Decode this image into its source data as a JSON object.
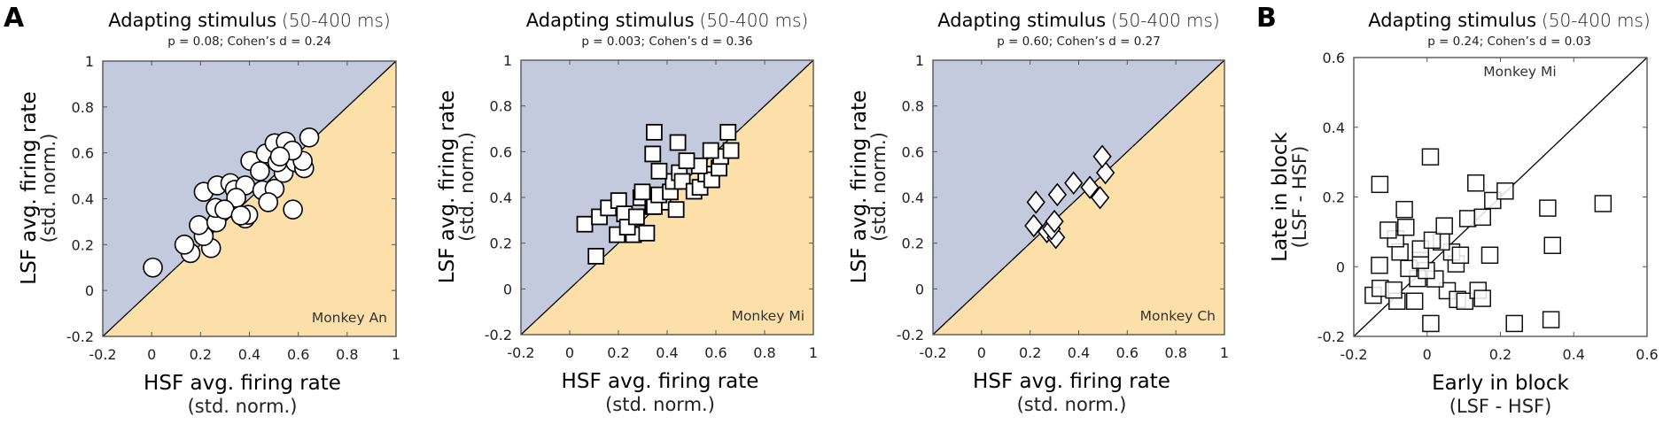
{
  "figure": {
    "panel_labels": [
      "A",
      "B"
    ],
    "colors": {
      "lsf_region": "#c3cadd",
      "hsf_region": "#fde0a9",
      "marker_fill": "#ffffff",
      "marker_edge": "#000000",
      "axis": "#555555"
    }
  },
  "chart_data": [
    {
      "type": "scatter",
      "panel": "A",
      "title": "Adapting stimulus",
      "title_suffix": "(50-400 ms)",
      "subtitle": "p = 0.08; Cohen’s d = 0.24",
      "annotation": "Monkey An",
      "annotation_position": "bottom-right",
      "marker": "circle",
      "xlabel": "HSF avg. firing rate",
      "xlabel_sub": "(std. norm.)",
      "ylabel": "LSF avg. firing rate",
      "ylabel_sub": "(std. norm.)",
      "xlim": [
        -0.2,
        1
      ],
      "ylim": [
        -0.2,
        1
      ],
      "xticks": [
        "-0.2",
        "0",
        "0.2",
        "0.4",
        "0.6",
        "0.8",
        "1"
      ],
      "yticks": [
        "-0.2",
        "0",
        "0.2",
        "0.4",
        "0.6",
        "0.8",
        "1"
      ],
      "xtick_values": [
        -0.2,
        0,
        0.2,
        0.4,
        0.6,
        0.8,
        1
      ],
      "ytick_values": [
        -0.2,
        0,
        0.2,
        0.4,
        0.6,
        0.8,
        1
      ],
      "diagonal": true,
      "shaded_halves": true,
      "grid": false,
      "points": [
        [
          0.005,
          0.1
        ],
        [
          0.645,
          0.667
        ],
        [
          0.578,
          0.353
        ],
        [
          0.404,
          0.565
        ],
        [
          0.159,
          0.163
        ],
        [
          0.243,
          0.185
        ],
        [
          0.134,
          0.2
        ],
        [
          0.213,
          0.237
        ],
        [
          0.193,
          0.285
        ],
        [
          0.265,
          0.297
        ],
        [
          0.383,
          0.314
        ],
        [
          0.395,
          0.33
        ],
        [
          0.328,
          0.36
        ],
        [
          0.262,
          0.36
        ],
        [
          0.213,
          0.43
        ],
        [
          0.268,
          0.458
        ],
        [
          0.322,
          0.468
        ],
        [
          0.34,
          0.439
        ],
        [
          0.383,
          0.458
        ],
        [
          0.453,
          0.437
        ],
        [
          0.503,
          0.443
        ],
        [
          0.477,
          0.385
        ],
        [
          0.443,
          0.52
        ],
        [
          0.467,
          0.597
        ],
        [
          0.503,
          0.642
        ],
        [
          0.549,
          0.649
        ],
        [
          0.54,
          0.513
        ],
        [
          0.588,
          0.559
        ],
        [
          0.624,
          0.533
        ],
        [
          0.515,
          0.559
        ],
        [
          0.346,
          0.404
        ],
        [
          0.298,
          0.353
        ],
        [
          0.365,
          0.327
        ],
        [
          0.618,
          0.565
        ],
        [
          0.576,
          0.61
        ],
        [
          0.525,
          0.584
        ]
      ]
    },
    {
      "type": "scatter",
      "panel": "A",
      "title": "Adapting stimulus",
      "title_suffix": "(50-400 ms)",
      "subtitle": "p = 0.003; Cohen’s d = 0.36",
      "annotation": "Monkey Mi",
      "annotation_position": "bottom-right",
      "marker": "square",
      "xlabel": "HSF avg. firing rate",
      "xlabel_sub": "(std. norm.)",
      "ylabel": "LSF avg. firing rate",
      "ylabel_sub": "(std. norm.)",
      "xlim": [
        -0.2,
        1
      ],
      "ylim": [
        -0.2,
        1
      ],
      "xticks": [
        "-0.2",
        "0",
        "0.2",
        "0.4",
        "0.6",
        "0.8",
        "1"
      ],
      "yticks": [
        "-0.2",
        "0",
        "0.2",
        "0.4",
        "0.6",
        "0.8",
        "1"
      ],
      "xtick_values": [
        -0.2,
        0,
        0.2,
        0.4,
        0.6,
        0.8,
        1
      ],
      "ytick_values": [
        -0.2,
        0,
        0.2,
        0.4,
        0.6,
        0.8,
        1
      ],
      "diagonal": true,
      "shaded_halves": true,
      "grid": false,
      "points": [
        [
          0.108,
          0.143
        ],
        [
          0.062,
          0.283
        ],
        [
          0.122,
          0.315
        ],
        [
          0.159,
          0.354
        ],
        [
          0.201,
          0.386
        ],
        [
          0.225,
          0.328
        ],
        [
          0.195,
          0.237
        ],
        [
          0.262,
          0.237
        ],
        [
          0.316,
          0.244
        ],
        [
          0.237,
          0.27
        ],
        [
          0.274,
          0.315
        ],
        [
          0.292,
          0.399
        ],
        [
          0.341,
          0.36
        ],
        [
          0.383,
          0.379
        ],
        [
          0.347,
          0.36
        ],
        [
          0.437,
          0.347
        ],
        [
          0.298,
          0.424
        ],
        [
          0.366,
          0.411
        ],
        [
          0.413,
          0.424
        ],
        [
          0.425,
          0.47
        ],
        [
          0.367,
          0.515
        ],
        [
          0.45,
          0.508
        ],
        [
          0.462,
          0.47
        ],
        [
          0.51,
          0.427
        ],
        [
          0.535,
          0.444
        ],
        [
          0.559,
          0.502
        ],
        [
          0.583,
          0.477
        ],
        [
          0.532,
          0.538
        ],
        [
          0.48,
          0.56
        ],
        [
          0.613,
          0.528
        ],
        [
          0.62,
          0.579
        ],
        [
          0.579,
          0.605
        ],
        [
          0.662,
          0.605
        ],
        [
          0.65,
          0.685
        ],
        [
          0.341,
          0.59
        ],
        [
          0.444,
          0.64
        ],
        [
          0.347,
          0.685
        ]
      ]
    },
    {
      "type": "scatter",
      "panel": "A",
      "title": "Adapting stimulus",
      "title_suffix": "(50-400 ms)",
      "subtitle": "p = 0.60; Cohen’s d = 0.27",
      "annotation": "Monkey Ch",
      "annotation_position": "bottom-right",
      "marker": "diamond",
      "xlabel": "HSF avg. firing rate",
      "xlabel_sub": "(std. norm.)",
      "ylabel": "LSF avg. firing rate",
      "ylabel_sub": "(std. norm.)",
      "xlim": [
        -0.2,
        1
      ],
      "ylim": [
        -0.2,
        1
      ],
      "xticks": [
        "-0.2",
        "0",
        "0.2",
        "0.4",
        "0.6",
        "0.8",
        "1"
      ],
      "yticks": [
        "-0.2",
        "0",
        "0.2",
        "0.4",
        "0.6",
        "0.8",
        "1"
      ],
      "xtick_values": [
        -0.2,
        0,
        0.2,
        0.4,
        0.6,
        0.8,
        1
      ],
      "ytick_values": [
        -0.2,
        0,
        0.2,
        0.4,
        0.6,
        0.8,
        1
      ],
      "diagonal": true,
      "shaded_halves": true,
      "grid": false,
      "points": [
        [
          0.269,
          0.25
        ],
        [
          0.306,
          0.225
        ],
        [
          0.288,
          0.263
        ],
        [
          0.215,
          0.276
        ],
        [
          0.3,
          0.295
        ],
        [
          0.224,
          0.379
        ],
        [
          0.312,
          0.412
        ],
        [
          0.379,
          0.463
        ],
        [
          0.446,
          0.444
        ],
        [
          0.488,
          0.399
        ],
        [
          0.51,
          0.508
        ],
        [
          0.497,
          0.579
        ]
      ]
    },
    {
      "type": "scatter",
      "panel": "B",
      "title": "Adapting stimulus",
      "title_suffix": "(50-400 ms)",
      "subtitle": "p = 0.24; Cohen’s d = 0.03",
      "annotation": "Monkey Mi",
      "annotation_position": "top-center",
      "marker": "open-square",
      "xlabel": "Early in block",
      "xlabel_sub": "(LSF - HSF)",
      "ylabel": "Late in block",
      "ylabel_sub": "(LSF - HSF)",
      "xlim": [
        -0.2,
        0.6
      ],
      "ylim": [
        -0.2,
        0.6
      ],
      "xticks": [
        "-0.2",
        "0",
        "0.2",
        "0.4",
        "0.6"
      ],
      "yticks": [
        "-0.2",
        "0",
        "0.2",
        "0.4",
        "0.6"
      ],
      "xtick_values": [
        -0.2,
        0,
        0.2,
        0.4,
        0.6
      ],
      "ytick_values": [
        -0.2,
        0,
        0.2,
        0.4,
        0.6
      ],
      "diagonal": true,
      "shaded_halves": false,
      "grid": false,
      "points": [
        [
          -0.147,
          -0.082
        ],
        [
          -0.128,
          -0.062
        ],
        [
          -0.082,
          -0.099
        ],
        [
          -0.091,
          -0.067
        ],
        [
          -0.034,
          -0.099
        ],
        [
          0.055,
          -0.069
        ],
        [
          0.083,
          -0.094
        ],
        [
          0.103,
          -0.099
        ],
        [
          0.139,
          -0.068
        ],
        [
          0.151,
          -0.091
        ],
        [
          -0.026,
          -0.034
        ],
        [
          0.022,
          -0.035
        ],
        [
          -0.13,
          0.004
        ],
        [
          -0.05,
          -0.005
        ],
        [
          -0.002,
          -0.011
        ],
        [
          -0.018,
          0.018
        ],
        [
          0.079,
          0.008
        ],
        [
          -0.074,
          0.042
        ],
        [
          -0.018,
          0.051
        ],
        [
          0.067,
          0.042
        ],
        [
          0.091,
          0.033
        ],
        [
          0.171,
          0.033
        ],
        [
          0.342,
          0.061
        ],
        [
          0.039,
          0.071
        ],
        [
          0.014,
          0.076
        ],
        [
          -0.086,
          0.08
        ],
        [
          -0.106,
          0.105
        ],
        [
          -0.058,
          0.113
        ],
        [
          0.047,
          0.117
        ],
        [
          0.111,
          0.138
        ],
        [
          0.151,
          0.142
        ],
        [
          -0.062,
          0.164
        ],
        [
          0.329,
          0.168
        ],
        [
          0.179,
          0.19
        ],
        [
          0.48,
          0.181
        ],
        [
          0.213,
          0.217
        ],
        [
          -0.129,
          0.236
        ],
        [
          0.133,
          0.24
        ],
        [
          0.009,
          0.315
        ],
        [
          0.01,
          -0.163
        ],
        [
          0.238,
          -0.163
        ],
        [
          0.338,
          -0.152
        ]
      ]
    }
  ]
}
